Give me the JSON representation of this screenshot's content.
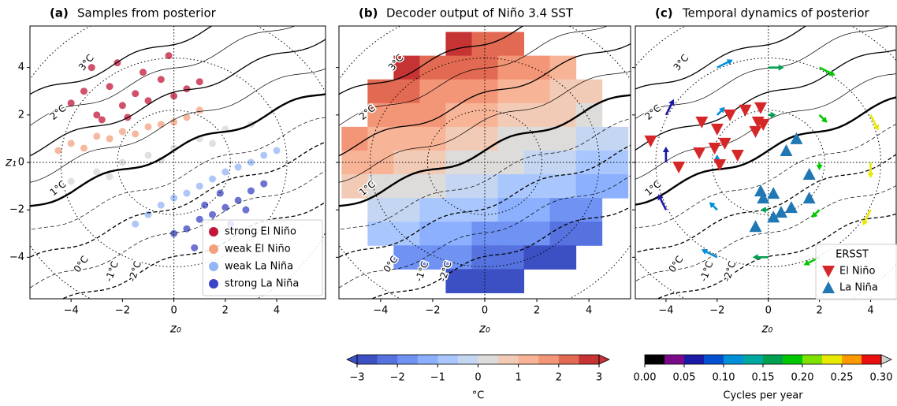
{
  "chart_data": [
    {
      "type": "scatter",
      "panel_label": "(a)",
      "title": "Samples from posterior",
      "xlabel": "z₀",
      "ylabel": "z₁",
      "xlim": [
        -5.6,
        5.9
      ],
      "ylim": [
        -5.75,
        5.75
      ],
      "xticks": [
        {
          "value": -4,
          "label": "−4"
        },
        {
          "value": -2,
          "label": "−2"
        },
        0,
        2,
        4
      ],
      "yticks": [
        {
          "value": -4,
          "label": "−4"
        },
        {
          "value": -2,
          "label": "−2"
        },
        0,
        2,
        4
      ],
      "contour_labels": [
        "3°C",
        "2°C",
        "1°C",
        "0°C",
        "-1°C",
        "-2°C"
      ],
      "legend": "lower right",
      "series": [
        {
          "name": "strong El Niño",
          "color": "#c2173a",
          "x": [
            -4,
            -3.5,
            -3,
            -2.5,
            -2,
            -1.5,
            -1,
            -0.5,
            0,
            0.5,
            -3.2,
            -2.2,
            -1.2,
            -0.2,
            1,
            -2.8,
            -1.8
          ],
          "y": [
            2.5,
            3,
            2,
            3.2,
            2.4,
            2.9,
            2.6,
            3.5,
            2.8,
            3.1,
            4,
            4.2,
            3.8,
            4.5,
            3.4,
            1.8,
            1.9
          ]
        },
        {
          "name": "weak El Niño",
          "color": "#f3a07e",
          "x": [
            -4.5,
            -4,
            -3.5,
            -3,
            -2.5,
            -2,
            -1.5,
            -1,
            -0.5,
            0,
            0.5,
            1
          ],
          "y": [
            0.5,
            0.8,
            0.6,
            1.1,
            1.0,
            1.3,
            1.2,
            1.5,
            1.6,
            1.7,
            1.9,
            2.2
          ]
        },
        {
          "color": "#d6d6d6",
          "x": [
            -4,
            -3,
            -2,
            -1,
            0,
            1,
            2,
            3,
            -2.5,
            -0.5,
            1.5
          ],
          "y": [
            -0.8,
            -0.4,
            0,
            0.3,
            0.6,
            1.0,
            1.4,
            1.6,
            -0.6,
            0.1,
            0.8
          ]
        },
        {
          "name": "weak La Niña",
          "color": "#93b4f5",
          "x": [
            -1.5,
            -1,
            -0.5,
            0,
            0.5,
            1,
            1.5,
            2,
            2.5,
            3,
            3.5,
            4
          ],
          "y": [
            -2.6,
            -2.2,
            -1.8,
            -1.5,
            -1.3,
            -1,
            -0.7,
            -0.4,
            -0.2,
            0,
            0.3,
            0.5
          ]
        },
        {
          "name": "strong La Niña",
          "color": "#3b44c4",
          "x": [
            0,
            0.5,
            1,
            1.5,
            2,
            2.5,
            3,
            3.5,
            1.2,
            2.2,
            2.8,
            0.8,
            1.8
          ],
          "y": [
            -3,
            -2.8,
            -2.4,
            -2.2,
            -1.9,
            -1.6,
            -1.2,
            -0.9,
            -1.8,
            -2.6,
            -2.0,
            -3.6,
            -1.3
          ]
        }
      ]
    },
    {
      "type": "heatmap",
      "panel_label": "(b)",
      "title": "Decoder output of Niño 3.4 SST",
      "xlabel": "z₀",
      "xlim": [
        -5.6,
        5.6
      ],
      "ylim": [
        -5.75,
        5.75
      ],
      "xticks": [
        {
          "value": -4,
          "label": "−4"
        },
        {
          "value": -2,
          "label": "−2"
        },
        0,
        2,
        4
      ],
      "yticks": [
        -4,
        -2,
        0,
        2,
        4
      ],
      "show_ytick_labels": false,
      "contour_labels": [
        "3°C",
        "2°C",
        "1°C",
        "0°C",
        "-1°C",
        "-2°C"
      ],
      "x": [
        -5,
        -4,
        -3,
        -2,
        -1,
        0,
        1,
        2,
        3,
        4,
        5
      ],
      "y": [
        5,
        4,
        3,
        2,
        1,
        0,
        -1,
        -2,
        -3,
        -4,
        -5
      ],
      "z": [
        [
          null,
          null,
          null,
          null,
          2.65,
          2.45,
          2.25,
          null,
          null,
          null,
          null
        ],
        [
          null,
          null,
          2.6,
          2.4,
          2.2,
          2.0,
          1.8,
          1.6,
          1.4,
          null,
          null
        ],
        [
          null,
          2.35,
          2.15,
          1.95,
          1.75,
          1.55,
          1.35,
          1.15,
          0.95,
          0.75,
          null
        ],
        [
          null,
          1.9,
          1.7,
          1.5,
          1.3,
          1.1,
          0.9,
          0.7,
          0.5,
          0.3,
          null
        ],
        [
          1.65,
          1.45,
          1.25,
          1.05,
          0.85,
          0.65,
          0.45,
          0.25,
          0.05,
          -0.15,
          -0.35
        ],
        [
          1.2,
          1.0,
          0.8,
          0.6,
          0.4,
          0.2,
          0,
          -0.2,
          -0.4,
          -0.6,
          -0.8
        ],
        [
          0.6,
          0.4,
          0.2,
          0,
          -0.2,
          -0.4,
          -0.6,
          -0.8,
          -1.0,
          -1.2,
          -1.4
        ],
        [
          null,
          -0.2,
          -0.4,
          -0.6,
          -0.8,
          -1.0,
          -1.2,
          -1.4,
          -1.6,
          -1.8,
          null
        ],
        [
          null,
          -0.8,
          -1.0,
          -1.2,
          -1.4,
          -1.6,
          -1.8,
          -2.0,
          -2.2,
          -2.4,
          null
        ],
        [
          null,
          null,
          -1.6,
          -1.8,
          -2.0,
          -2.2,
          -2.4,
          -2.6,
          -2.8,
          null,
          null
        ],
        [
          null,
          null,
          null,
          null,
          -2.6,
          -2.8,
          -3.0,
          null,
          null,
          null,
          null
        ]
      ],
      "colorbar": {
        "label": "°C",
        "lim": [
          -3,
          3
        ],
        "extend": "both",
        "ticks": [
          {
            "value": -3,
            "label": "−3"
          },
          {
            "value": -2,
            "label": "−2"
          },
          {
            "value": -1,
            "label": "−1"
          },
          0,
          1,
          2,
          3
        ],
        "colors": [
          "#3d50c3",
          "#5572df",
          "#6f92f3",
          "#8db0fe",
          "#aac7fd",
          "#c5d6f2",
          "#dedcdb",
          "#f2cbb7",
          "#f7b497",
          "#f39577",
          "#e26952",
          "#c53334"
        ]
      }
    },
    {
      "type": "quiver",
      "panel_label": "(c)",
      "title": "Temporal dynamics of posterior",
      "xlabel": "z₀",
      "xlim": [
        -5.2,
        5.0
      ],
      "ylim": [
        -5.75,
        5.75
      ],
      "xticks": [
        {
          "value": -4,
          "label": "−4"
        },
        {
          "value": -2,
          "label": "−2"
        },
        0,
        2,
        4
      ],
      "yticks": [
        -4,
        -2,
        0,
        2,
        4
      ],
      "show_ytick_labels": false,
      "contour_labels": [
        "3°C",
        "2°C",
        "1°C",
        "0°C",
        "-1°C",
        "-2°C"
      ],
      "arrows": {
        "x": [
          -2,
          0,
          2,
          -4,
          -2,
          0,
          2,
          4,
          -4,
          -2,
          2,
          4,
          -4,
          -2,
          0,
          2,
          4,
          -2,
          0,
          2
        ],
        "y": [
          4,
          4,
          4,
          2,
          2,
          2,
          2,
          2,
          0,
          0,
          0,
          0,
          -2,
          -2,
          -2,
          -2,
          -2,
          -4,
          -4,
          -4
        ],
        "u": [
          1,
          1,
          1,
          0.5,
          0.5,
          0.5,
          0.5,
          0.5,
          0,
          0,
          0,
          0,
          -0.5,
          -0.5,
          -0.5,
          -0.5,
          -0.5,
          -1,
          -1,
          -1
        ],
        "v": [
          0.5,
          0,
          -0.5,
          1,
          0.5,
          0,
          -0.5,
          -1,
          1,
          0.5,
          -0.5,
          -1,
          1,
          0.5,
          0,
          -0.5,
          -1,
          0.5,
          0,
          -0.5
        ],
        "freq": [
          0.11,
          0.15,
          0.19,
          0.07,
          0.11,
          0.15,
          0.19,
          0.23,
          0.07,
          0.11,
          0.19,
          0.23,
          0.07,
          0.11,
          0.15,
          0.19,
          0.23,
          0.11,
          0.15,
          0.19
        ]
      },
      "legend_title": "ERSST",
      "legend": "lower right",
      "series": [
        {
          "name": "El Niño",
          "color": "#d62728",
          "marker": "down",
          "x": [
            -4.6,
            -3.5,
            -2.6,
            -2,
            -1.7,
            -1.5,
            -1.2,
            -0.9,
            -0.5,
            -0.3,
            -0.2,
            -2.1,
            -2.7,
            -1.9,
            -0.4
          ],
          "y": [
            0.9,
            -0.2,
            1.7,
            1.4,
            0.8,
            2.0,
            0.3,
            2.2,
            1.3,
            2.3,
            1.6,
            0.6,
            0.4,
            -0.1,
            1.7
          ]
        },
        {
          "name": "La Niña",
          "color": "#1f77b4",
          "marker": "up",
          "x": [
            0.7,
            1.6,
            1.6,
            0.9,
            0.2,
            -0.2,
            -0.3,
            0.2,
            0.5,
            -0.5,
            1.1
          ],
          "y": [
            0.5,
            -0.5,
            -1.5,
            -1.9,
            -1.3,
            -1.5,
            -1.2,
            -2.3,
            -2.1,
            -2.7,
            1.0
          ]
        }
      ],
      "colorbar": {
        "label": "Cycles per year",
        "lim": [
          0,
          0.3
        ],
        "extend": "max",
        "over": "#d0d0d0",
        "ticks": [
          {
            "value": 0,
            "label": "0.00"
          },
          {
            "value": 0.05,
            "label": "0.05"
          },
          {
            "value": 0.1,
            "label": "0.10"
          },
          {
            "value": 0.15,
            "label": "0.15"
          },
          {
            "value": 0.2,
            "label": "0.20"
          },
          {
            "value": 0.25,
            "label": "0.25"
          },
          {
            "value": 0.3,
            "label": "0.30"
          }
        ],
        "colors": [
          "#000000",
          "#7b0a8a",
          "#1a1aa6",
          "#0050d0",
          "#0090d8",
          "#00a8a0",
          "#00a050",
          "#00c800",
          "#80e000",
          "#e8e800",
          "#ff9900",
          "#e81010"
        ]
      }
    }
  ]
}
